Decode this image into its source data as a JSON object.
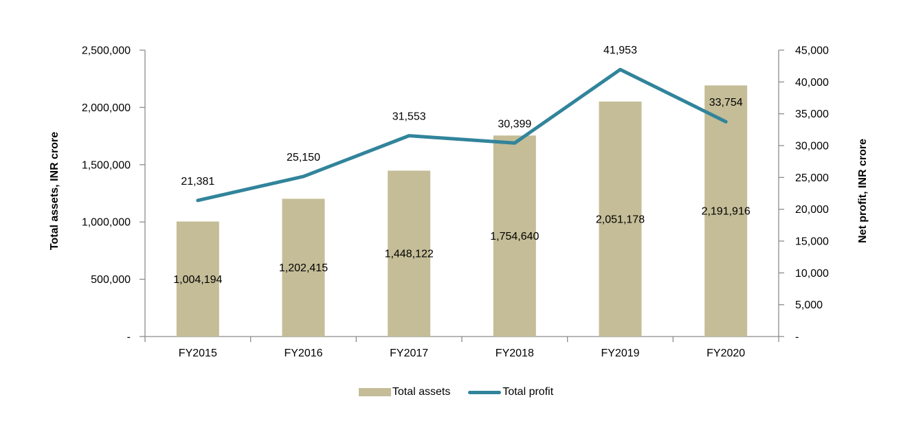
{
  "chart_data": {
    "type": "combo-bar-line",
    "categories": [
      "FY2015",
      "FY2016",
      "FY2017",
      "FY2018",
      "FY2019",
      "FY2020"
    ],
    "series": [
      {
        "name": "Total assets",
        "type": "bar",
        "axis": "left",
        "color": "#C4BD97",
        "values": [
          1004194,
          1202415,
          1448122,
          1754640,
          2051178,
          2191916
        ],
        "labels": [
          "1,004,194",
          "1,202,415",
          "1,448,122",
          "1,754,640",
          "2,051,178",
          "2,191,916"
        ]
      },
      {
        "name": "Total profit",
        "type": "line",
        "axis": "right",
        "color": "#31849B",
        "values": [
          21381,
          25150,
          31553,
          30399,
          41953,
          33754
        ],
        "labels": [
          "21,381",
          "25,150",
          "31,553",
          "30,399",
          "41,953",
          "33,754"
        ]
      }
    ],
    "left_axis": {
      "title": "Total assets, INR crore",
      "min": 0,
      "max": 2500000,
      "step": 500000,
      "tick_labels": [
        "-",
        "500,000",
        "1,000,000",
        "1,500,000",
        "2,000,000",
        "2,500,000"
      ]
    },
    "right_axis": {
      "title": "Net profit, INR crore",
      "min": 0,
      "max": 45000,
      "step": 5000,
      "tick_labels": [
        "-",
        "5,000",
        "10,000",
        "15,000",
        "20,000",
        "25,000",
        "30,000",
        "35,000",
        "40,000",
        "45,000"
      ]
    },
    "legend": {
      "position": "bottom",
      "entries": [
        {
          "label": "Total assets",
          "marker": "bar-swatch",
          "color": "#C4BD97"
        },
        {
          "label": "Total profit",
          "marker": "line-swatch",
          "color": "#31849B"
        }
      ]
    },
    "grid": false,
    "axis_color": "#8C8C8C",
    "text_color": "#000000"
  }
}
